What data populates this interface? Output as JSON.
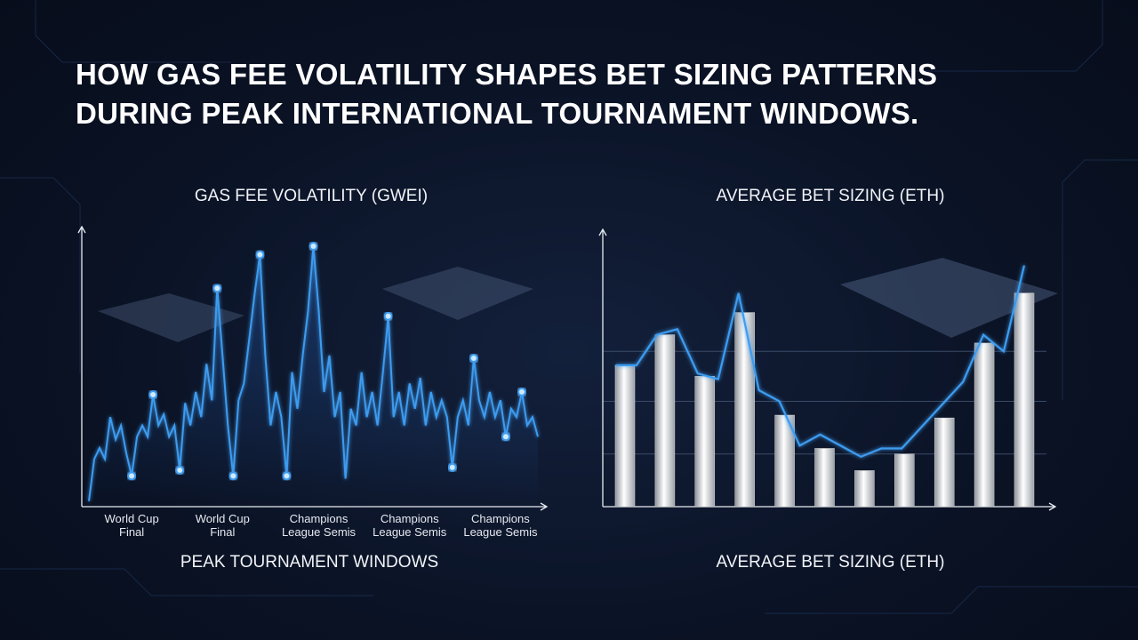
{
  "title": "HOW GAS FEE VOLATILITY SHAPES BET SIZING PATTERNS\nDURING PEAK INTERNATIONAL TOURNAMENT WINDOWS.",
  "chart_data": [
    {
      "type": "line",
      "title": "GAS FEE VOLATILITY (GWEI)",
      "x_label": "PEAK TOURNAMENT WINDOWS",
      "color": "#3d9cf0",
      "ylim": [
        0,
        100
      ],
      "categories": [
        null,
        null,
        null,
        null,
        null,
        null,
        null,
        null,
        "World Cup\nFinal",
        null,
        null,
        null,
        null,
        null,
        null,
        null,
        null,
        null,
        null,
        null,
        null,
        null,
        null,
        null,
        null,
        "World Cup\nFinal",
        null,
        null,
        null,
        null,
        null,
        null,
        null,
        null,
        null,
        null,
        null,
        null,
        null,
        null,
        null,
        null,
        null,
        "Champions\nLeague Semis",
        null,
        null,
        null,
        null,
        null,
        null,
        null,
        null,
        null,
        null,
        null,
        null,
        null,
        null,
        null,
        null,
        "Champions\nLeague Semis",
        null,
        null,
        null,
        null,
        null,
        null,
        null,
        null,
        null,
        null,
        null,
        null,
        null,
        null,
        null,
        null,
        "Champions\nLeague Semis",
        null,
        null,
        null,
        null,
        null,
        null,
        null
      ],
      "values": [
        2,
        17,
        21,
        17,
        32,
        24,
        29,
        19,
        11,
        25,
        29,
        25,
        40,
        29,
        33,
        25,
        29,
        13,
        37,
        29,
        41,
        32,
        51,
        38,
        78,
        54,
        29,
        11,
        38,
        44,
        60,
        76,
        90,
        54,
        29,
        41,
        32,
        11,
        48,
        35,
        54,
        70,
        93,
        70,
        41,
        54,
        32,
        41,
        10,
        35,
        29,
        48,
        32,
        41,
        29,
        48,
        68,
        32,
        41,
        29,
        44,
        35,
        46,
        29,
        41,
        32,
        38,
        32,
        14,
        32,
        38,
        29,
        53,
        38,
        32,
        41,
        32,
        38,
        25,
        35,
        32,
        41,
        29,
        32,
        25
      ],
      "markers": [
        8,
        12,
        17,
        24,
        27,
        32,
        37,
        42,
        56,
        68,
        72,
        78,
        81
      ]
    },
    {
      "type": "bar",
      "title": "AVERAGE BET SIZING (ETH)",
      "x_label": "AVERAGE BET SIZING (ETH)",
      "color": "#d9d9d9",
      "ylim": [
        0,
        100
      ],
      "grid_lines": [
        19,
        38,
        56
      ],
      "values": [
        51,
        62,
        47,
        70,
        33,
        21,
        13,
        19,
        32,
        59,
        77
      ],
      "line": {
        "color": "#3d9cf0",
        "values": [
          51,
          51,
          62,
          64,
          48,
          46,
          77,
          42,
          38,
          22,
          26,
          22,
          18,
          21,
          21,
          29,
          37,
          45,
          62,
          56,
          87
        ]
      }
    }
  ]
}
